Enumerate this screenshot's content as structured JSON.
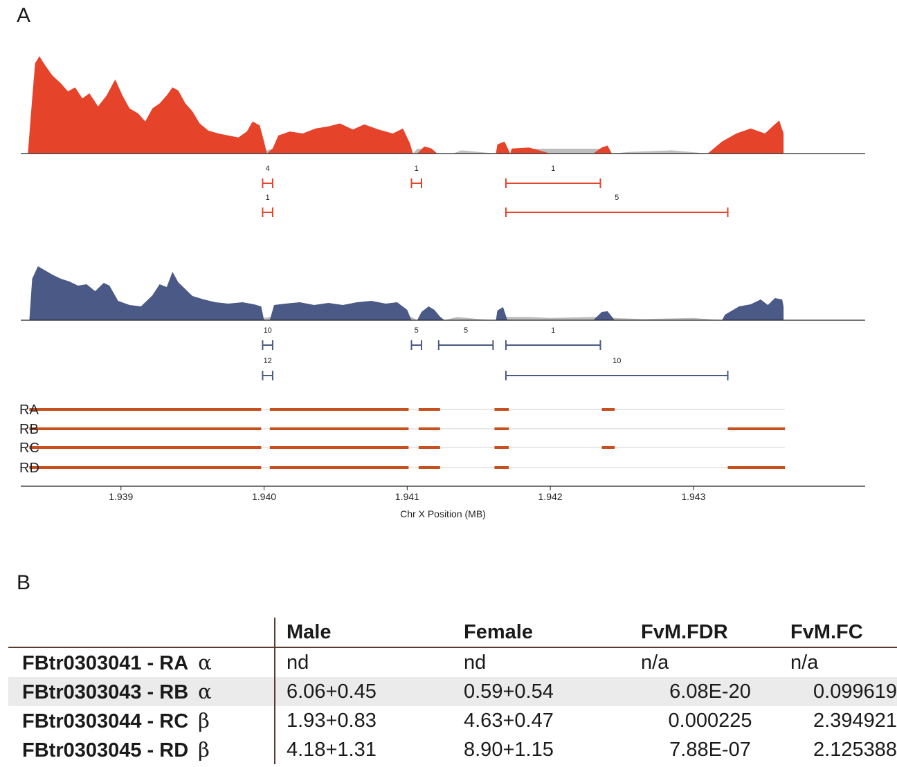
{
  "panel_a_label": "A",
  "panel_b_label": "B",
  "chart_data": {
    "type": "area",
    "xlabel": "Chr X Position (MB)",
    "xlim": [
      1.9383,
      1.9442
    ],
    "xticks": [
      1.939,
      1.94,
      1.941,
      1.942,
      1.943
    ],
    "xtick_labels": [
      "1.939",
      "1.940",
      "1.941",
      "1.942",
      "1.943"
    ],
    "coverage_series": [
      {
        "color": "#e5432a",
        "muted_color": "#bdbdbd",
        "profile": [
          [
            1.93835,
            0.0
          ],
          [
            1.93838,
            0.55
          ],
          [
            1.9384,
            0.9
          ],
          [
            1.93843,
            0.97
          ],
          [
            1.93847,
            0.88
          ],
          [
            1.93852,
            0.78
          ],
          [
            1.93858,
            0.7
          ],
          [
            1.93863,
            0.62
          ],
          [
            1.93868,
            0.66
          ],
          [
            1.93873,
            0.55
          ],
          [
            1.93878,
            0.6
          ],
          [
            1.93884,
            0.47
          ],
          [
            1.9389,
            0.58
          ],
          [
            1.93896,
            0.74
          ],
          [
            1.93901,
            0.58
          ],
          [
            1.93906,
            0.45
          ],
          [
            1.93912,
            0.4
          ],
          [
            1.93917,
            0.32
          ],
          [
            1.93922,
            0.45
          ],
          [
            1.93927,
            0.5
          ],
          [
            1.93932,
            0.58
          ],
          [
            1.93936,
            0.66
          ],
          [
            1.9394,
            0.63
          ],
          [
            1.93945,
            0.5
          ],
          [
            1.9395,
            0.42
          ],
          [
            1.93955,
            0.3
          ],
          [
            1.93961,
            0.23
          ],
          [
            1.93968,
            0.2
          ],
          [
            1.93975,
            0.18
          ],
          [
            1.93982,
            0.16
          ],
          [
            1.93988,
            0.22
          ],
          [
            1.93992,
            0.32
          ],
          [
            1.93997,
            0.28
          ],
          [
            1.94,
            0.12
          ],
          [
            1.94002,
            0.02
          ],
          [
            1.94006,
            0.05
          ],
          [
            1.9401,
            0.18
          ],
          [
            1.94018,
            0.22
          ],
          [
            1.94027,
            0.2
          ],
          [
            1.94036,
            0.25
          ],
          [
            1.94045,
            0.27
          ],
          [
            1.94053,
            0.3
          ],
          [
            1.94062,
            0.24
          ],
          [
            1.9407,
            0.29
          ],
          [
            1.9408,
            0.24
          ],
          [
            1.9409,
            0.2
          ],
          [
            1.94097,
            0.25
          ],
          [
            1.94102,
            0.1
          ],
          [
            1.94104,
            0.0
          ],
          [
            1.94107,
            0.04
          ],
          [
            1.94112,
            0.07
          ],
          [
            1.94117,
            0.05
          ],
          [
            1.94121,
            0.0
          ],
          [
            1.94132,
            0.0
          ],
          [
            1.94138,
            0.02
          ],
          [
            1.9415,
            0.01
          ],
          [
            1.94162,
            0.0
          ],
          [
            1.94163,
            0.09
          ],
          [
            1.94168,
            0.12
          ],
          [
            1.94172,
            0.0
          ],
          [
            1.94173,
            0.05
          ],
          [
            1.94185,
            0.06
          ],
          [
            1.942,
            0.03
          ],
          [
            1.9423,
            0.03
          ],
          [
            1.94236,
            0.06
          ],
          [
            1.9424,
            0.08
          ],
          [
            1.94243,
            0.0
          ],
          [
            1.94255,
            0.01
          ],
          [
            1.94285,
            0.02
          ],
          [
            1.9431,
            0.0
          ],
          [
            1.9432,
            0.12
          ],
          [
            1.9433,
            0.2
          ],
          [
            1.9434,
            0.25
          ],
          [
            1.9435,
            0.2
          ],
          [
            1.94356,
            0.28
          ],
          [
            1.9436,
            0.33
          ],
          [
            1.94363,
            0.2
          ]
        ],
        "junctions": [
          {
            "start": 1.93999,
            "end": 1.94006,
            "count": "4",
            "row": 0
          },
          {
            "start": 1.94103,
            "end": 1.9411,
            "count": "1",
            "row": 0
          },
          {
            "start": 1.94169,
            "end": 1.94235,
            "count": "1",
            "row": 0
          },
          {
            "start": 1.93999,
            "end": 1.94006,
            "count": "1",
            "row": 1
          },
          {
            "start": 1.94169,
            "end": 1.94324,
            "count": "5",
            "row": 1
          }
        ]
      },
      {
        "color": "#4a5985",
        "muted_color": "#bdbdbd",
        "profile": [
          [
            1.93836,
            0.0
          ],
          [
            1.93838,
            0.6
          ],
          [
            1.93842,
            0.78
          ],
          [
            1.93847,
            0.72
          ],
          [
            1.93852,
            0.66
          ],
          [
            1.93858,
            0.6
          ],
          [
            1.93864,
            0.56
          ],
          [
            1.9387,
            0.5
          ],
          [
            1.93876,
            0.52
          ],
          [
            1.93882,
            0.42
          ],
          [
            1.93888,
            0.54
          ],
          [
            1.93892,
            0.5
          ],
          [
            1.93898,
            0.28
          ],
          [
            1.93906,
            0.22
          ],
          [
            1.93914,
            0.2
          ],
          [
            1.93922,
            0.36
          ],
          [
            1.93927,
            0.52
          ],
          [
            1.93932,
            0.48
          ],
          [
            1.93936,
            0.7
          ],
          [
            1.9394,
            0.55
          ],
          [
            1.93945,
            0.45
          ],
          [
            1.9395,
            0.35
          ],
          [
            1.93958,
            0.3
          ],
          [
            1.93966,
            0.26
          ],
          [
            1.93975,
            0.24
          ],
          [
            1.93985,
            0.26
          ],
          [
            1.93993,
            0.23
          ],
          [
            1.93998,
            0.2
          ],
          [
            1.94,
            0.02
          ],
          [
            1.94004,
            0.04
          ],
          [
            1.94007,
            0.22
          ],
          [
            1.94015,
            0.24
          ],
          [
            1.94025,
            0.26
          ],
          [
            1.94035,
            0.22
          ],
          [
            1.94045,
            0.25
          ],
          [
            1.94055,
            0.22
          ],
          [
            1.94065,
            0.26
          ],
          [
            1.94075,
            0.28
          ],
          [
            1.94085,
            0.24
          ],
          [
            1.94093,
            0.26
          ],
          [
            1.941,
            0.15
          ],
          [
            1.94103,
            0.03
          ],
          [
            1.94107,
            0.0
          ],
          [
            1.9411,
            0.12
          ],
          [
            1.94115,
            0.2
          ],
          [
            1.94119,
            0.15
          ],
          [
            1.94123,
            0.05
          ],
          [
            1.94126,
            0.0
          ],
          [
            1.94135,
            0.04
          ],
          [
            1.9415,
            0.01
          ],
          [
            1.94162,
            0.0
          ],
          [
            1.94163,
            0.14
          ],
          [
            1.94167,
            0.19
          ],
          [
            1.9417,
            0.03
          ],
          [
            1.94185,
            0.04
          ],
          [
            1.942,
            0.02
          ],
          [
            1.9423,
            0.04
          ],
          [
            1.94236,
            0.12
          ],
          [
            1.9424,
            0.13
          ],
          [
            1.94245,
            0.02
          ],
          [
            1.94265,
            0.01
          ],
          [
            1.943,
            0.02
          ],
          [
            1.9432,
            0.0
          ],
          [
            1.94322,
            0.08
          ],
          [
            1.94332,
            0.2
          ],
          [
            1.9434,
            0.23
          ],
          [
            1.94347,
            0.3
          ],
          [
            1.94352,
            0.22
          ],
          [
            1.94357,
            0.32
          ],
          [
            1.94362,
            0.3
          ],
          [
            1.94363,
            0.2
          ]
        ],
        "junctions": [
          {
            "start": 1.93999,
            "end": 1.94006,
            "count": "10",
            "row": 0
          },
          {
            "start": 1.94103,
            "end": 1.9411,
            "count": "5",
            "row": 0
          },
          {
            "start": 1.94122,
            "end": 1.9416,
            "count": "5",
            "row": 0
          },
          {
            "start": 1.94169,
            "end": 1.94235,
            "count": "1",
            "row": 0
          },
          {
            "start": 1.93999,
            "end": 1.94006,
            "count": "12",
            "row": 1
          },
          {
            "start": 1.94169,
            "end": 1.94324,
            "count": "10",
            "row": 1
          }
        ]
      }
    ],
    "isoforms": [
      {
        "name": "RA",
        "exons": [
          [
            1.93836,
            1.93998
          ],
          [
            1.94004,
            1.94101
          ],
          [
            1.94108,
            1.94123
          ],
          [
            1.94161,
            1.94171
          ],
          [
            1.94236,
            1.94245
          ]
        ]
      },
      {
        "name": "RB",
        "exons": [
          [
            1.93836,
            1.93998
          ],
          [
            1.94004,
            1.94101
          ],
          [
            1.94108,
            1.94123
          ],
          [
            1.94161,
            1.94171
          ],
          [
            1.94324,
            1.94364
          ]
        ]
      },
      {
        "name": "RC",
        "exons": [
          [
            1.93836,
            1.93998
          ],
          [
            1.94004,
            1.94101
          ],
          [
            1.94108,
            1.94123
          ],
          [
            1.94161,
            1.94171
          ],
          [
            1.94236,
            1.94245
          ]
        ]
      },
      {
        "name": "RD",
        "exons": [
          [
            1.93836,
            1.93998
          ],
          [
            1.94004,
            1.94101
          ],
          [
            1.94108,
            1.94123
          ],
          [
            1.94161,
            1.94171
          ],
          [
            1.94324,
            1.94364
          ]
        ]
      }
    ],
    "exon_color": "#c8501f",
    "intron_color": "#e0e0e0"
  },
  "table": {
    "headers": [
      "",
      "Male",
      "Female",
      "FvM.FDR",
      "FvM.FC"
    ],
    "rows": [
      {
        "name": "FBtr0303041 - RA",
        "greek": "α",
        "male": "nd",
        "female": "nd",
        "fdr": "n/a",
        "fc": "n/a"
      },
      {
        "name": "FBtr0303043 - RB",
        "greek": "α",
        "male": "6.06+0.45",
        "female": "0.59+0.54",
        "fdr": "6.08E-20",
        "fc": "0.099619"
      },
      {
        "name": "FBtr0303044 - RC",
        "greek": "β",
        "male": "1.93+0.83",
        "female": "4.63+0.47",
        "fdr": "0.000225",
        "fc": "2.394921"
      },
      {
        "name": "FBtr0303045 - RD",
        "greek": "β",
        "male": "4.18+1.31",
        "female": "8.90+1.15",
        "fdr": "7.88E-07",
        "fc": "2.125388"
      }
    ]
  }
}
